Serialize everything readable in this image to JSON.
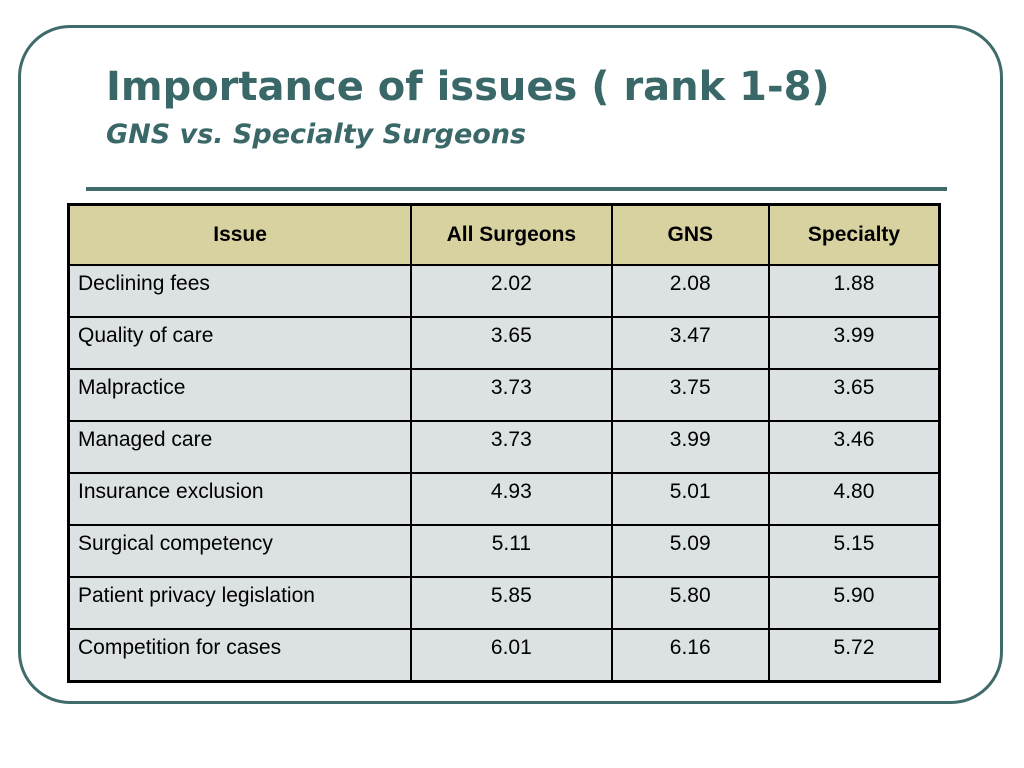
{
  "slide": {
    "title": "Importance of issues ( rank 1-8)",
    "subtitle": "GNS vs. Specialty Surgeons",
    "colors": {
      "accent": "#3a6868",
      "header_fill": "#d8d2a0",
      "cell_fill": "#dce1e3"
    }
  },
  "table": {
    "headers": [
      "Issue",
      "All Surgeons",
      "GNS",
      "Specialty"
    ],
    "rows": [
      [
        "Declining fees",
        "2.02",
        "2.08",
        "1.88"
      ],
      [
        "Quality of care",
        "3.65",
        "3.47",
        "3.99"
      ],
      [
        "Malpractice",
        "3.73",
        "3.75",
        "3.65"
      ],
      [
        "Managed care",
        "3.73",
        "3.99",
        "3.46"
      ],
      [
        "Insurance exclusion",
        "4.93",
        "5.01",
        "4.80"
      ],
      [
        "Surgical competency",
        "5.11",
        "5.09",
        "5.15"
      ],
      [
        "Patient privacy legislation",
        "5.85",
        "5.80",
        "5.90"
      ],
      [
        "Competition for cases",
        "6.01",
        "6.16",
        "5.72"
      ]
    ]
  }
}
